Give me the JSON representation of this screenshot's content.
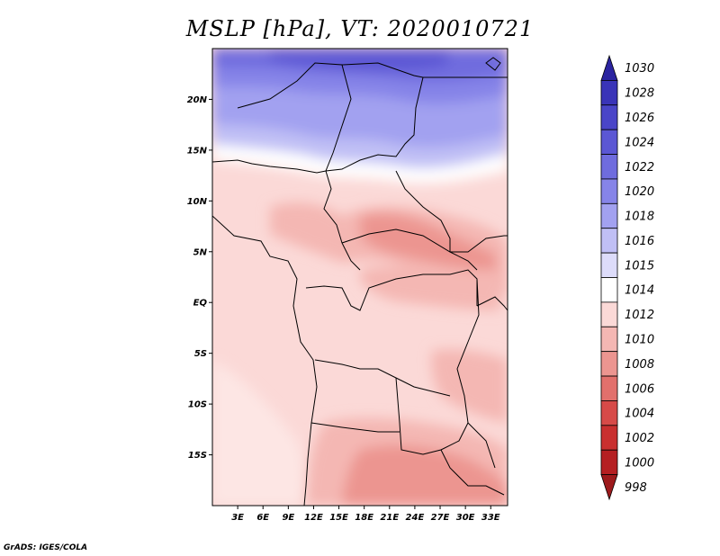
{
  "title": "MSLP [hPa], VT: 2020010721",
  "credit": "GrADS: IGES/COLA",
  "map": {
    "lat_labels": [
      "20N",
      "15N",
      "10N",
      "5N",
      "EQ",
      "5S",
      "10S",
      "15S"
    ],
    "lat_values": [
      20,
      15,
      10,
      5,
      0,
      -5,
      -10,
      -15
    ],
    "lon_labels": [
      "3E",
      "6E",
      "9E",
      "12E",
      "15E",
      "18E",
      "21E",
      "24E",
      "27E",
      "30E",
      "33E"
    ],
    "lon_values": [
      3,
      6,
      9,
      12,
      15,
      18,
      21,
      24,
      27,
      30,
      33
    ],
    "lon_range": [
      0,
      35
    ],
    "lat_range": [
      -20,
      25
    ]
  },
  "colorbar": {
    "levels": [
      "1030",
      "1028",
      "1026",
      "1024",
      "1022",
      "1020",
      "1018",
      "1016",
      "1015",
      "1014",
      "1012",
      "1010",
      "1008",
      "1006",
      "1004",
      "1002",
      "1000",
      "998"
    ],
    "colors": [
      "#2b24a0",
      "#3a34b8",
      "#4a45c8",
      "#5b57d4",
      "#6f6cde",
      "#8684e8",
      "#a2a1f0",
      "#c0bff5",
      "#dddcfa",
      "#ffffff",
      "#fbd9d7",
      "#f4b7b3",
      "#ec9590",
      "#e2706c",
      "#d74a48",
      "#c92f2f",
      "#b51f22",
      "#9d1a1c"
    ]
  }
}
